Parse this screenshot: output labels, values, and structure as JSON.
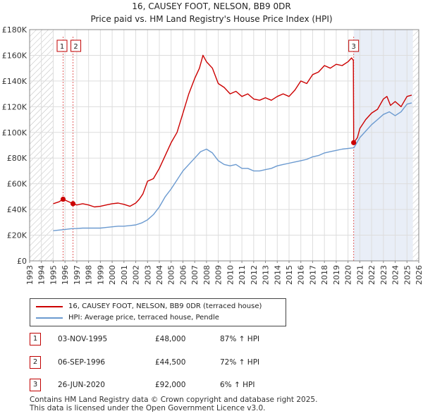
{
  "title_line1": "16, CAUSEY FOOT, NELSON, BB9 0DR",
  "title_line2": "Price paid vs. HM Land Registry's House Price Index (HPI)",
  "colors": {
    "property": "#cc0000",
    "hpi": "#6b9ad0",
    "shade": "#e9eef7",
    "hatch": "#bbbbbb",
    "marker": "#cc0000"
  },
  "chart_data": {
    "type": "line",
    "x_ticks": [
      "1993",
      "1994",
      "1995",
      "1996",
      "1997",
      "1998",
      "1999",
      "2000",
      "2001",
      "2002",
      "2003",
      "2004",
      "2005",
      "2006",
      "2007",
      "2008",
      "2009",
      "2010",
      "2011",
      "2012",
      "2013",
      "2014",
      "2015",
      "2016",
      "2017",
      "2018",
      "2019",
      "2020",
      "2021",
      "2022",
      "2023",
      "2024",
      "2025",
      "2026"
    ],
    "y_ticks": [
      "£0",
      "£20K",
      "£40K",
      "£60K",
      "£80K",
      "£100K",
      "£120K",
      "£140K",
      "£160K",
      "£180K"
    ],
    "xlim": [
      1993,
      2026
    ],
    "ylim": [
      0,
      180000
    ],
    "grid": true,
    "series": [
      {
        "name": "16, CAUSEY FOOT, NELSON, BB9 0DR (terraced house)",
        "color": "#cc0000",
        "x": [
          1995.0,
          1995.5,
          1995.84,
          1996.2,
          1996.68,
          1997.0,
          1997.5,
          1998.0,
          1998.5,
          1999.0,
          1999.5,
          2000.0,
          2000.5,
          2001.0,
          2001.5,
          2002.0,
          2002.3,
          2002.6,
          2003.0,
          2003.5,
          2004.0,
          2004.5,
          2005.0,
          2005.5,
          2006.0,
          2006.5,
          2007.0,
          2007.4,
          2007.7,
          2008.0,
          2008.5,
          2009.0,
          2009.5,
          2010.0,
          2010.5,
          2011.0,
          2011.5,
          2012.0,
          2012.5,
          2013.0,
          2013.5,
          2014.0,
          2014.5,
          2015.0,
          2015.5,
          2016.0,
          2016.5,
          2017.0,
          2017.5,
          2018.0,
          2018.5,
          2019.0,
          2019.5,
          2020.0,
          2020.3,
          2020.45,
          2020.48,
          2020.8,
          2021.0,
          2021.5,
          2022.0,
          2022.5,
          2023.0,
          2023.3,
          2023.6,
          2024.0,
          2024.5,
          2025.0,
          2025.4
        ],
        "values": [
          44500,
          46000,
          48000,
          46500,
          44500,
          43500,
          44500,
          43500,
          42000,
          42500,
          43500,
          44500,
          45000,
          44000,
          42500,
          45000,
          48000,
          52000,
          62000,
          64000,
          72000,
          82000,
          92000,
          100000,
          115000,
          130000,
          142000,
          150000,
          160000,
          155000,
          150000,
          138000,
          135000,
          130000,
          132000,
          128000,
          130000,
          126000,
          125000,
          127000,
          125000,
          128000,
          130000,
          128000,
          133000,
          140000,
          138000,
          145000,
          147000,
          152000,
          150000,
          153000,
          152000,
          155000,
          158000,
          156000,
          92000,
          96000,
          103000,
          110000,
          115000,
          118000,
          126000,
          128000,
          121000,
          124000,
          120000,
          128000,
          129000
        ]
      },
      {
        "name": "HPI: Average price, terraced house, Pendle",
        "color": "#6b9ad0",
        "x": [
          1995.0,
          1995.5,
          1996.0,
          1996.5,
          1997.0,
          1997.5,
          1998.0,
          1998.5,
          1999.0,
          1999.5,
          2000.0,
          2000.5,
          2001.0,
          2001.5,
          2002.0,
          2002.5,
          2003.0,
          2003.5,
          2004.0,
          2004.5,
          2005.0,
          2005.5,
          2006.0,
          2006.5,
          2007.0,
          2007.5,
          2008.0,
          2008.5,
          2009.0,
          2009.5,
          2010.0,
          2010.5,
          2011.0,
          2011.5,
          2012.0,
          2012.5,
          2013.0,
          2013.5,
          2014.0,
          2014.5,
          2015.0,
          2015.5,
          2016.0,
          2016.5,
          2017.0,
          2017.5,
          2018.0,
          2018.5,
          2019.0,
          2019.5,
          2020.0,
          2020.5,
          2021.0,
          2021.5,
          2022.0,
          2022.5,
          2023.0,
          2023.5,
          2024.0,
          2024.5,
          2025.0,
          2025.4
        ],
        "values": [
          23500,
          24000,
          24500,
          25000,
          25200,
          25500,
          25500,
          25500,
          25500,
          26000,
          26500,
          27000,
          27000,
          27500,
          28000,
          29500,
          32000,
          36000,
          42000,
          50000,
          56000,
          63000,
          70000,
          75000,
          80000,
          85000,
          87000,
          84000,
          78000,
          75000,
          74000,
          75000,
          72000,
          72000,
          70000,
          70000,
          71000,
          72000,
          74000,
          75000,
          76000,
          77000,
          78000,
          79000,
          81000,
          82000,
          84000,
          85000,
          86000,
          87000,
          87500,
          88000,
          96000,
          101000,
          106000,
          110000,
          114000,
          116000,
          113000,
          116000,
          122000,
          123000
        ]
      }
    ],
    "sales": [
      {
        "id": "1",
        "year": 1995.84,
        "price": 48000,
        "date": "03-NOV-1995",
        "price_label": "£48,000",
        "hpi_label": "87% ↑ HPI"
      },
      {
        "id": "2",
        "year": 1996.68,
        "price": 44500,
        "date": "06-SEP-1996",
        "price_label": "£44,500",
        "hpi_label": "72% ↑ HPI"
      },
      {
        "id": "3",
        "year": 2020.48,
        "price": 92000,
        "date": "26-JUN-2020",
        "price_label": "£92,000",
        "hpi_label": "6% ↑ HPI"
      }
    ],
    "history_hatch_until": 1995.0,
    "shade_from": 2020.48,
    "forecast_hatch_from": 2025.5
  },
  "legend": {
    "property_label": "16, CAUSEY FOOT, NELSON, BB9 0DR (terraced house)",
    "hpi_label": "HPI: Average price, terraced house, Pendle"
  },
  "footer_line1": "Contains HM Land Registry data © Crown copyright and database right 2025.",
  "footer_line2": "This data is licensed under the Open Government Licence v3.0."
}
